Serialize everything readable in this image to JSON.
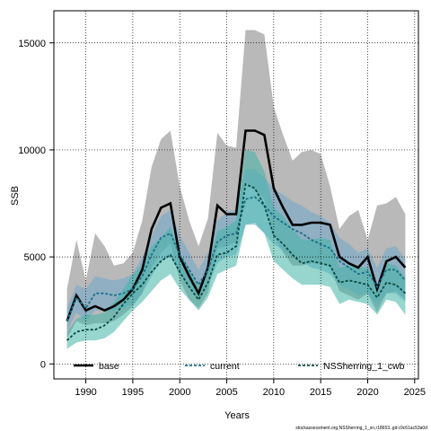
{
  "chart_data": {
    "type": "line",
    "title": "",
    "xlabel": "Years",
    "ylabel": "SSB",
    "xlim": [
      1986.6,
      2025.4
    ],
    "ylim": [
      -700,
      16500
    ],
    "xticks": [
      1990,
      1995,
      2000,
      2005,
      2010,
      2015,
      2020,
      2025
    ],
    "yticks": [
      0,
      5000,
      10000,
      15000
    ],
    "grid": true,
    "legend_position": "bottom",
    "footnote": "stockassessment.org,NSSherring_1_sn,r18653..git:c9c61ac53a0d",
    "x": [
      1988,
      1989,
      1990,
      1991,
      1992,
      1993,
      1994,
      1995,
      1996,
      1997,
      1998,
      1999,
      2000,
      2001,
      2002,
      2003,
      2004,
      2005,
      2006,
      2007,
      2008,
      2009,
      2010,
      2011,
      2012,
      2013,
      2014,
      2015,
      2016,
      2017,
      2018,
      2019,
      2020,
      2021,
      2022,
      2023,
      2024
    ],
    "series": [
      {
        "name": "base",
        "color": "#000000",
        "band_color": "#808080",
        "values": [
          2000,
          3200,
          2500,
          2700,
          2500,
          2700,
          3000,
          3500,
          4400,
          6300,
          7300,
          7500,
          5000,
          4100,
          3300,
          4500,
          7400,
          7000,
          7000,
          10900,
          10900,
          10700,
          8200,
          7300,
          6500,
          6500,
          6600,
          6600,
          6500,
          5000,
          4700,
          4500,
          5000,
          3500,
          4800,
          5000,
          4500
        ],
        "lower": [
          1200,
          2000,
          1800,
          1900,
          1900,
          2000,
          2300,
          2700,
          3300,
          4500,
          5200,
          5600,
          3900,
          3000,
          2600,
          3300,
          5400,
          5500,
          5700,
          8500,
          8100,
          7700,
          6000,
          5200,
          4600,
          4600,
          4700,
          4700,
          4500,
          3400,
          3200,
          3000,
          3300,
          2400,
          3300,
          3400,
          3000
        ],
        "upper": [
          3500,
          5800,
          3900,
          6100,
          5500,
          4600,
          4700,
          5200,
          6700,
          9200,
          10500,
          10900,
          8300,
          6700,
          5500,
          6800,
          10800,
          10200,
          10100,
          15600,
          15600,
          15400,
          12000,
          10700,
          9500,
          9900,
          10000,
          9800,
          8300,
          6300,
          6900,
          7200,
          5800,
          7400,
          7500,
          7800,
          7000
        ]
      },
      {
        "name": "current",
        "color": "#1a7088",
        "band_color": "#6fa8cc",
        "values": [
          2000,
          3100,
          2600,
          3300,
          3300,
          3200,
          3300,
          3500,
          4100,
          5100,
          5900,
          6100,
          5100,
          4400,
          3700,
          4400,
          5700,
          6000,
          6100,
          7700,
          7800,
          7400,
          6900,
          6600,
          6300,
          6100,
          5800,
          5600,
          5400,
          4800,
          4500,
          4200,
          4300,
          3600,
          4400,
          4400,
          3900
        ],
        "lower": [
          1500,
          2400,
          2000,
          2500,
          2500,
          2500,
          2600,
          2800,
          3300,
          4100,
          4800,
          5000,
          4200,
          3600,
          3000,
          3600,
          4700,
          5000,
          5100,
          6500,
          6500,
          6100,
          5600,
          5300,
          5000,
          4800,
          4500,
          4400,
          4200,
          3700,
          3500,
          3200,
          3300,
          2700,
          3300,
          3300,
          2900
        ],
        "upper": [
          2600,
          3700,
          3500,
          4100,
          4000,
          3900,
          4000,
          4200,
          5000,
          6000,
          6900,
          7200,
          6000,
          5200,
          4400,
          5200,
          6700,
          7100,
          7200,
          9100,
          9100,
          8700,
          8200,
          7900,
          7600,
          7400,
          7100,
          6900,
          6600,
          5900,
          5600,
          5200,
          5400,
          4500,
          5400,
          5500,
          4900
        ]
      },
      {
        "name": "NSSherring_1_cwb",
        "color": "#0a4a44",
        "band_color": "#40b5a5",
        "values": [
          1100,
          1500,
          1600,
          1600,
          1800,
          2200,
          2800,
          3300,
          3700,
          4300,
          4800,
          5100,
          4300,
          3600,
          3000,
          3800,
          5100,
          5200,
          5500,
          8400,
          8200,
          7400,
          6000,
          5600,
          5100,
          4700,
          4800,
          4700,
          4600,
          3800,
          3900,
          3800,
          3700,
          3100,
          3800,
          3700,
          3300
        ],
        "lower": [
          700,
          1000,
          1100,
          1100,
          1200,
          1500,
          2000,
          2500,
          2900,
          3400,
          3900,
          4200,
          3500,
          3000,
          2500,
          3100,
          4200,
          4400,
          4600,
          6500,
          6600,
          6100,
          4800,
          4400,
          4000,
          3700,
          3700,
          3700,
          3600,
          2800,
          3000,
          2900,
          2800,
          2300,
          3000,
          2900,
          2300
        ],
        "upper": [
          1500,
          2100,
          2300,
          2300,
          2400,
          2900,
          3500,
          4200,
          4600,
          5500,
          5900,
          6400,
          5200,
          4400,
          3600,
          4600,
          6200,
          6400,
          6700,
          10000,
          9900,
          9000,
          7300,
          6900,
          6300,
          5800,
          5800,
          5900,
          5800,
          4500,
          4600,
          4500,
          4500,
          3700,
          4700,
          4600,
          4000
        ]
      }
    ]
  }
}
